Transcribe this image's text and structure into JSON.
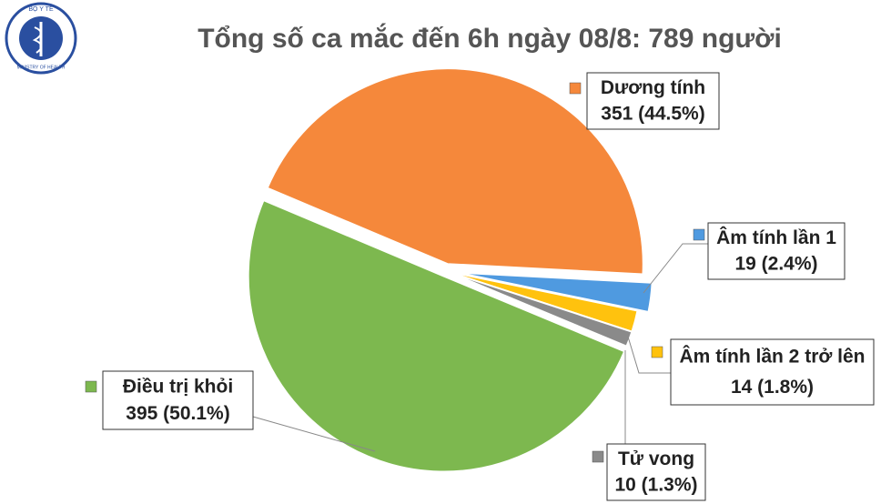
{
  "logo": {
    "top": "BỘ Y TẾ",
    "bottom": "MINISTRY OF HEALTH"
  },
  "chart_data": {
    "type": "pie",
    "title": "Tổng số ca mắc đến 6h ngày 08/8: 789 người",
    "categories": [
      "Dương tính",
      "Âm tính lần 1",
      "Âm tính lần 2 trở lên",
      "Tử vong",
      "Điều trị khỏi"
    ],
    "values": [
      351,
      19,
      14,
      10,
      395
    ],
    "value_labels": [
      "351 (44.5%)",
      "19 (2.4%)",
      "14 (1.8%)",
      "10 (1.3%)",
      "395 (50.1%)"
    ],
    "colors": [
      "#f5883b",
      "#4f9ae0",
      "#ffc20e",
      "#8a8a8a",
      "#7db84f"
    ]
  }
}
